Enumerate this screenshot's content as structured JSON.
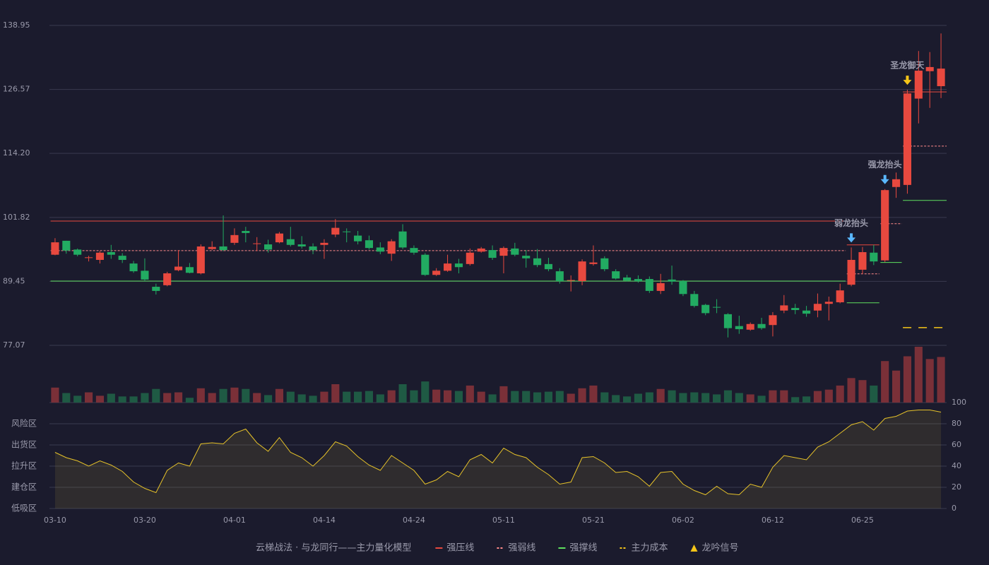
{
  "chart_data": {
    "type": "candlestick",
    "categories": [
      "03-10",
      null,
      null,
      null,
      null,
      null,
      null,
      null,
      "03-20",
      null,
      null,
      null,
      null,
      null,
      null,
      null,
      "04-01",
      null,
      null,
      null,
      null,
      null,
      null,
      null,
      "04-14",
      null,
      null,
      null,
      null,
      null,
      null,
      null,
      "04-24",
      null,
      null,
      null,
      null,
      null,
      null,
      null,
      "05-11",
      null,
      null,
      null,
      null,
      null,
      null,
      null,
      "05-21",
      null,
      null,
      null,
      null,
      null,
      null,
      null,
      "06-02",
      null,
      null,
      null,
      null,
      null,
      null,
      null,
      "06-12",
      null,
      null,
      null,
      null,
      null,
      null,
      null,
      "06-25",
      null,
      null,
      null,
      null,
      null,
      null,
      null
    ],
    "open": [
      94.6,
      97.3,
      95.6,
      94.0,
      93.6,
      95.1,
      94.4,
      92.9,
      91.5,
      88.4,
      88.7,
      91.6,
      92.2,
      91.0,
      95.7,
      96.2,
      96.9,
      99.2,
      96.7,
      96.6,
      97.0,
      97.6,
      96.6,
      96.2,
      96.5,
      98.5,
      99.1,
      98.3,
      97.4,
      96.0,
      94.8,
      99.1,
      95.9,
      94.6,
      90.7,
      91.5,
      92.9,
      92.8,
      95.2,
      95.5,
      94.4,
      95.8,
      94.4,
      93.9,
      92.8,
      91.4,
      89.6,
      89.5,
      92.8,
      93.9,
      91.4,
      90.2,
      89.9,
      89.9,
      87.6,
      89.8,
      89.5,
      87.0,
      84.9,
      84.5,
      83.1,
      80.8,
      80.1,
      81.2,
      81.0,
      83.8,
      84.3,
      83.8,
      83.8,
      85.1,
      85.4,
      88.8,
      91.7,
      95.0,
      93.5,
      107.7,
      108.1,
      124.8,
      130.1,
      127.2
    ],
    "high": [
      97.8,
      97.3,
      95.8,
      94.4,
      95.3,
      96.5,
      94.9,
      93.4,
      93.9,
      89.0,
      91.3,
      95.5,
      93.0,
      96.6,
      97.2,
      102.2,
      99.7,
      100.0,
      98.0,
      97.5,
      99.0,
      100.0,
      98.2,
      96.8,
      97.6,
      101.5,
      99.7,
      99.2,
      98.3,
      97.0,
      97.6,
      100.5,
      96.4,
      94.9,
      92.0,
      94.6,
      93.8,
      95.8,
      96.1,
      96.4,
      96.2,
      96.9,
      95.5,
      95.7,
      94.0,
      92.0,
      90.6,
      93.7,
      96.4,
      94.3,
      91.8,
      90.7,
      90.6,
      90.4,
      90.9,
      92.5,
      89.7,
      87.6,
      85.1,
      86.0,
      83.3,
      82.8,
      81.5,
      82.4,
      83.5,
      86.8,
      85.1,
      84.7,
      87.1,
      86.5,
      89.0,
      96.0,
      96.1,
      96.5,
      107.3,
      110.5,
      126.5,
      134.0,
      133.8,
      137.4
    ],
    "low": [
      94.5,
      94.8,
      94.3,
      93.3,
      92.9,
      93.8,
      93.0,
      91.1,
      89.5,
      86.9,
      88.5,
      91.4,
      91.0,
      90.8,
      95.5,
      95.3,
      96.5,
      97.0,
      95.3,
      95.0,
      96.8,
      96.2,
      95.8,
      94.7,
      93.8,
      98.0,
      97.0,
      96.6,
      95.6,
      94.7,
      93.4,
      95.7,
      94.6,
      90.5,
      90.5,
      91.3,
      91.0,
      92.5,
      95.0,
      93.6,
      91.0,
      94.3,
      92.1,
      92.2,
      91.4,
      89.0,
      87.5,
      88.7,
      92.5,
      91.4,
      89.8,
      89.4,
      89.2,
      87.2,
      87.0,
      88.8,
      86.6,
      84.4,
      82.9,
      83.3,
      78.6,
      79.3,
      79.9,
      80.1,
      78.8,
      83.3,
      83.1,
      82.6,
      82.5,
      81.9,
      85.2,
      88.5,
      90.9,
      92.6,
      93.2,
      105.6,
      106.4,
      120.0,
      123.0,
      124.9
    ],
    "close": [
      97.0,
      95.4,
      94.6,
      94.1,
      95.0,
      94.6,
      93.6,
      91.4,
      89.8,
      87.6,
      91.0,
      92.3,
      91.1,
      96.2,
      96.1,
      95.5,
      98.4,
      98.8,
      96.8,
      95.6,
      98.7,
      96.5,
      96.2,
      95.5,
      96.9,
      99.8,
      99.0,
      97.2,
      95.9,
      95.2,
      97.2,
      96.0,
      95.0,
      90.7,
      91.5,
      92.9,
      92.2,
      95.0,
      95.8,
      94.0,
      95.9,
      94.6,
      93.9,
      92.6,
      91.8,
      89.5,
      89.7,
      93.3,
      93.1,
      91.8,
      90.0,
      89.6,
      89.5,
      87.6,
      89.1,
      89.4,
      87.0,
      84.7,
      83.3,
      84.4,
      80.4,
      80.2,
      81.2,
      80.4,
      82.9,
      84.8,
      83.9,
      83.2,
      85.1,
      85.5,
      87.7,
      93.6,
      95.1,
      93.3,
      107.1,
      109.2,
      125.8,
      130.2,
      130.9,
      130.6
    ],
    "volume": [
      22,
      14,
      10,
      15,
      10,
      13,
      9,
      9,
      14,
      20,
      14,
      15,
      7,
      21,
      14,
      20,
      22,
      20,
      14,
      11,
      20,
      16,
      12,
      10,
      16,
      27,
      16,
      16,
      17,
      12,
      18,
      27,
      18,
      31,
      19,
      18,
      17,
      25,
      16,
      12,
      24,
      17,
      17,
      15,
      16,
      17,
      13,
      21,
      25,
      15,
      11,
      9,
      13,
      15,
      20,
      18,
      14,
      15,
      14,
      12,
      18,
      14,
      12,
      10,
      18,
      18,
      8,
      9,
      17,
      19,
      25,
      36,
      33,
      25,
      61,
      47,
      68,
      82,
      64,
      67
    ],
    "oscillator": [
      53,
      48,
      45,
      40,
      45,
      41,
      35,
      25,
      19,
      15,
      36,
      43,
      40,
      61,
      62,
      61,
      71,
      75,
      62,
      54,
      67,
      53,
      48,
      40,
      50,
      63,
      59,
      49,
      41,
      36,
      50,
      43,
      36,
      23,
      27,
      35,
      30,
      46,
      51,
      43,
      57,
      51,
      48,
      39,
      32,
      23,
      25,
      48,
      49,
      43,
      34,
      35,
      30,
      21,
      34,
      35,
      23,
      17,
      13,
      21,
      14,
      13,
      23,
      20,
      39,
      50,
      48,
      46,
      58,
      63,
      71,
      79,
      82,
      74,
      85,
      87,
      92,
      93,
      93,
      91
    ],
    "up_color": "#e8493f",
    "down_color": "#22ab62",
    "ylim": [
      77.07,
      138.95
    ],
    "yticks": [
      77.07,
      89.45,
      101.82,
      {
        "value": 114.2,
        "label": "114.20"
      },
      126.57,
      138.95
    ],
    "osc_ylim": [
      0,
      100
    ],
    "osc_yticks": [
      0,
      20,
      40,
      60,
      80,
      100
    ],
    "osc_tick_colors": [
      "#ff4a4a",
      "#ff6b5b",
      "#4aa3ff",
      "#e040fb",
      "#f5a623",
      "#39e639"
    ],
    "zones": [
      {
        "value": 80,
        "label": "风险区",
        "color": "#f5a623"
      },
      {
        "value": 60,
        "label": "出货区",
        "color": "#e040fb"
      },
      {
        "value": 40,
        "label": "拉升区",
        "color": "#4aa3ff"
      },
      {
        "value": 20,
        "label": "建仓区",
        "color": "#ff6b5b"
      },
      {
        "value": 0,
        "label": "低吸区",
        "color": "#ff4a4a"
      }
    ],
    "levels": [
      {
        "name": "强压线",
        "color": "#e8493f",
        "dash": false,
        "segments": [
          {
            "start": 0,
            "end": 70,
            "value": 101.11
          },
          {
            "start": 71,
            "end": 73,
            "value": 96.5
          },
          {
            "start": 76,
            "end": 79,
            "value": 126.1
          }
        ]
      },
      {
        "name": "强弱线",
        "color": "#ff8a8a",
        "dash": true,
        "segments": [
          {
            "start": 0,
            "end": 70,
            "value": 95.4
          },
          {
            "start": 71,
            "end": 73,
            "value": 90.9
          },
          {
            "start": 74,
            "end": 75,
            "value": 100.6
          },
          {
            "start": 76,
            "end": 79,
            "value": 115.6
          }
        ]
      },
      {
        "name": "强撑线",
        "color": "#5ee05e",
        "dash": false,
        "segments": [
          {
            "start": 0,
            "end": 70,
            "value": 89.5
          },
          {
            "start": 71,
            "end": 73,
            "value": 85.3
          },
          {
            "start": 74,
            "end": 75,
            "value": 93.1
          },
          {
            "start": 76,
            "end": 79,
            "value": 105.1
          }
        ]
      },
      {
        "name": "主力成本",
        "color": "#f5c518",
        "dash": true,
        "segments": [
          {
            "start": 76,
            "end": 79,
            "value": 80.5
          }
        ]
      }
    ],
    "signal_name": "龙吟信号",
    "signal_color": "#f5c518",
    "signals": [
      {
        "index": 71,
        "label": "弱龙抬头",
        "color": "#5ab8ff"
      },
      {
        "index": 74,
        "label": "强龙抬头",
        "color": "#5ab8ff"
      },
      {
        "index": 76,
        "label": "圣龙御天",
        "color": "#f5c518"
      }
    ],
    "legend_title": "云梯战法 · 与龙同行——主力量化模型"
  }
}
